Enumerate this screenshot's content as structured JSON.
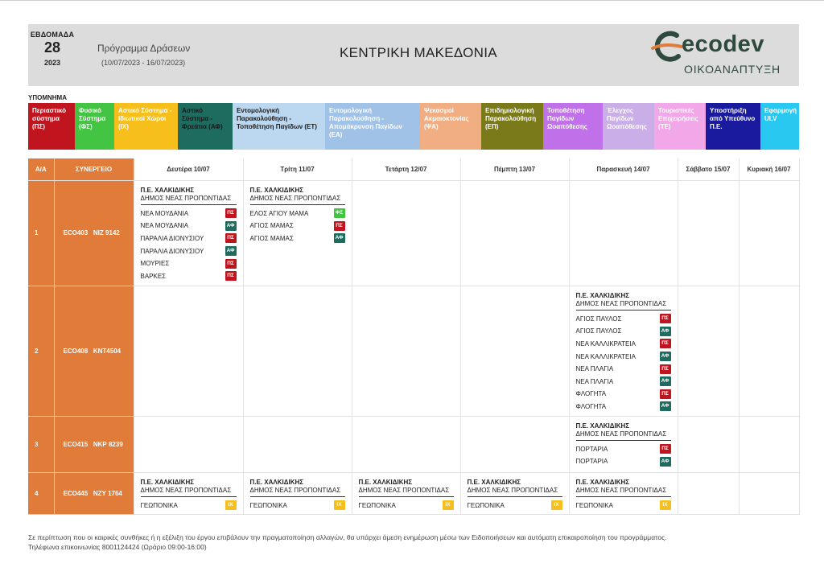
{
  "header": {
    "week_label": "ΕΒΔΟΜΑΔΑ",
    "week_number": "28",
    "year": "2023",
    "program_title": "Πρόγραμμα Δράσεων",
    "program_dates": "(10/07/2023 - 16/07/2023)",
    "region": "ΚΕΝΤΡΙΚΗ ΜΑΚΕΔΟΝΙΑ",
    "logo_word": "ecodev",
    "logo_sub": "ΟΙΚΟΑΝΑΠΤΥΞΗ"
  },
  "legend": {
    "title": "ΥΠΟΜΝΗΜΑ",
    "items": [
      {
        "label": "Περιαστικό σύστημα (ΠΣ)",
        "bg": "#c0141e",
        "fg": "#ffffff",
        "width": 58
      },
      {
        "label": "Φυσικό Σύστημα (ΦΣ)",
        "bg": "#43c443",
        "fg": "#ffffff",
        "width": 49
      },
      {
        "label": "Αστικό Σύστημα - Ιδιωτικοί Χώροι (ΙΧ)",
        "bg": "#f7bf1c",
        "fg": "#ffffff",
        "width": 79
      },
      {
        "label": "Αστικό Σύστημα - Φρεάτια (ΑΦ)",
        "bg": "#1e6b5f",
        "fg": "#1a1a1a",
        "width": 68
      },
      {
        "label": "Εντομολογική Παρακολούθηση - Τοποθέτηση Παγίδων (ET)",
        "bg": "#bcd7f0",
        "fg": "#1a1a1a",
        "width": 115
      },
      {
        "label": "Εντομολογική Παρακολούθηση - Απομάκρυνση Παγίδων (ΕΑ)",
        "bg": "#9fc2e6",
        "fg": "#ffffff",
        "width": 118
      },
      {
        "label": "Ψεκασμοί Ακμαιοκτονίας (ΨΑ)",
        "bg": "#f2ae83",
        "fg": "#ffffff",
        "width": 76
      },
      {
        "label": "Επιδημιολογική Παρακολούθηση (ΕΠ)",
        "bg": "#7a7a1a",
        "fg": "#ffffff",
        "width": 77
      },
      {
        "label": "Τοποθέτηση Παγίδων Ωοαπόθεσης",
        "bg": "#c070e8",
        "fg": "#ffffff",
        "width": 74
      },
      {
        "label": "Έλεγχος Παγίδων Ωοαπόθεσης",
        "bg": "#c9aee8",
        "fg": "#ffffff",
        "width": 64
      },
      {
        "label": "Τουριστικές Επιχειρήσεις (ΤΕ)",
        "bg": "#f2a8e8",
        "fg": "#ffffff",
        "width": 64
      },
      {
        "label": "Υποστήριξη από Υπεύθυνο Π.Ε.",
        "bg": "#1a1a9e",
        "fg": "#ffffff",
        "width": 68
      },
      {
        "label": "Εφαρμογή ULV",
        "bg": "#28c8f0",
        "fg": "#ffffff",
        "width": 48
      }
    ]
  },
  "badge_colors": {
    "ΠΣ": "#c0141e",
    "ΑΦ": "#1e6b5f",
    "ΦΣ": "#43c443",
    "ΙΧ": "#f7bf1c"
  },
  "table": {
    "col_aa": "Α/Α",
    "col_team": "ΣΥΝΕΡΓΕΙΟ",
    "days": [
      "Δευτέρα 10/07",
      "Τρίτη 11/07",
      "Τετάρτη 12/07",
      "Πέμπτη 13/07",
      "Παρασκευή 14/07",
      "Σάββατο 15/07",
      "Κυριακή 16/07"
    ],
    "rows": [
      {
        "aa": "1",
        "team": "ECO403   ΝΙΖ 9142",
        "cells": [
          {
            "region": "Π.Ε. ΧΑΛΚΙΔΙΚΗΣ",
            "muni": "ΔΗΜΟΣ ΝΕΑΣ ΠΡΟΠΟΝΤΙΔΑΣ",
            "items": [
              {
                "name": "ΝΕΑ ΜΟΥΔΑΝΙΑ",
                "code": "ΠΣ"
              },
              {
                "name": "ΝΕΑ ΜΟΥΔΑΝΙΑ",
                "code": "ΑΦ"
              },
              {
                "name": "ΠΑΡΑΛΙΑ ΔΙΟΝΥΣΙΟΥ",
                "code": "ΠΣ"
              },
              {
                "name": "ΠΑΡΑΛΙΑ ΔΙΟΝΥΣΙΟΥ",
                "code": "ΑΦ"
              },
              {
                "name": "ΜΟΥΡΙΕΣ",
                "code": "ΠΣ"
              },
              {
                "name": "ΒΑΡΚΕΣ",
                "code": "ΠΣ"
              }
            ]
          },
          {
            "region": "Π.Ε. ΧΑΛΚΙΔΙΚΗΣ",
            "muni": "ΔΗΜΟΣ ΝΕΑΣ ΠΡΟΠΟΝΤΙΔΑΣ",
            "items": [
              {
                "name": "ΕΛΟΣ ΑΓΙΟΥ ΜΑΜΑ",
                "code": "ΦΣ"
              },
              {
                "name": "ΑΓΙΟΣ ΜΑΜΑΣ",
                "code": "ΠΣ"
              },
              {
                "name": "ΑΓΙΟΣ ΜΑΜΑΣ",
                "code": "ΑΦ"
              }
            ]
          },
          null,
          null,
          null,
          null,
          null
        ]
      },
      {
        "aa": "2",
        "team": "ECO408   ΚΝΤ4504",
        "cells": [
          null,
          null,
          null,
          null,
          {
            "region": "Π.Ε. ΧΑΛΚΙΔΙΚΗΣ",
            "muni": "ΔΗΜΟΣ ΝΕΑΣ ΠΡΟΠΟΝΤΙΔΑΣ",
            "items": [
              {
                "name": "ΑΓΙΟΣ ΠΑΥΛΟΣ",
                "code": "ΠΣ"
              },
              {
                "name": "ΑΓΙΟΣ ΠΑΥΛΟΣ",
                "code": "ΑΦ"
              },
              {
                "name": "ΝΕΑ ΚΑΛΛΙΚΡΑΤΕΙΑ",
                "code": "ΠΣ"
              },
              {
                "name": "ΝΕΑ ΚΑΛΛΙΚΡΑΤΕΙΑ",
                "code": "ΑΦ"
              },
              {
                "name": "ΝΕΑ ΠΛΑΓΙΑ",
                "code": "ΠΣ"
              },
              {
                "name": "ΝΕΑ ΠΛΑΓΙΑ",
                "code": "ΑΦ"
              },
              {
                "name": "ΦΛΟΓΗΤΑ",
                "code": "ΠΣ"
              },
              {
                "name": "ΦΛΟΓΗΤΑ",
                "code": "ΑΦ"
              }
            ]
          },
          null,
          null
        ]
      },
      {
        "aa": "3",
        "team": "ECO415   ΝΚΡ 8239",
        "cells": [
          null,
          null,
          null,
          null,
          {
            "region": "Π.Ε. ΧΑΛΚΙΔΙΚΗΣ",
            "muni": "ΔΗΜΟΣ ΝΕΑΣ ΠΡΟΠΟΝΤΙΔΑΣ",
            "items": [
              {
                "name": "ΠΟΡΤΑΡΙΑ",
                "code": "ΠΣ"
              },
              {
                "name": "ΠΟΡΤΑΡΙΑ",
                "code": "ΑΦ"
              }
            ]
          },
          null,
          null
        ]
      },
      {
        "aa": "4",
        "team": "ECO445   ΝΖΥ 1764",
        "cells": [
          {
            "region": "Π.Ε. ΧΑΛΚΙΔΙΚΗΣ",
            "muni": "ΔΗΜΟΣ ΝΕΑΣ ΠΡΟΠΟΝΤΙΔΑΣ",
            "items": [
              {
                "name": "ΓΕΩΠΟΝΙΚΑ",
                "code": "ΙΧ"
              }
            ]
          },
          {
            "region": "Π.Ε. ΧΑΛΚΙΔΙΚΗΣ",
            "muni": "ΔΗΜΟΣ ΝΕΑΣ ΠΡΟΠΟΝΤΙΔΑΣ",
            "items": [
              {
                "name": "ΓΕΩΠΟΝΙΚΑ",
                "code": "ΙΧ"
              }
            ]
          },
          {
            "region": "Π.Ε. ΧΑΛΚΙΔΙΚΗΣ",
            "muni": "ΔΗΜΟΣ ΝΕΑΣ ΠΡΟΠΟΝΤΙΔΑΣ",
            "items": [
              {
                "name": "ΓΕΩΠΟΝΙΚΑ",
                "code": "ΙΧ"
              }
            ]
          },
          {
            "region": "Π.Ε. ΧΑΛΚΙΔΙΚΗΣ",
            "muni": "ΔΗΜΟΣ ΝΕΑΣ ΠΡΟΠΟΝΤΙΔΑΣ",
            "items": [
              {
                "name": "ΓΕΩΠΟΝΙΚΑ",
                "code": "ΙΧ"
              }
            ]
          },
          {
            "region": "Π.Ε. ΧΑΛΚΙΔΙΚΗΣ",
            "muni": "ΔΗΜΟΣ ΝΕΑΣ ΠΡΟΠΟΝΤΙΔΑΣ",
            "items": [
              {
                "name": "ΓΕΩΠΟΝΙΚΑ",
                "code": "ΙΧ"
              }
            ]
          },
          null,
          null
        ]
      }
    ]
  },
  "footer": {
    "note": "Σε περίπτωση που οι καιρικές συνθήκες ή η εξέλιξη του έργου επιβάλουν την πραγματοποίηση αλλαγών, θα υπάρχει άμεση ενημέρωση μέσω των Ειδοποιήσεων και αυτόματη επικαιροποίηση του προγράμματος.",
    "phone": "Τηλέφωνα επικοινωνίας 8001124424 (Ωράριο 09:00-16:00)"
  }
}
